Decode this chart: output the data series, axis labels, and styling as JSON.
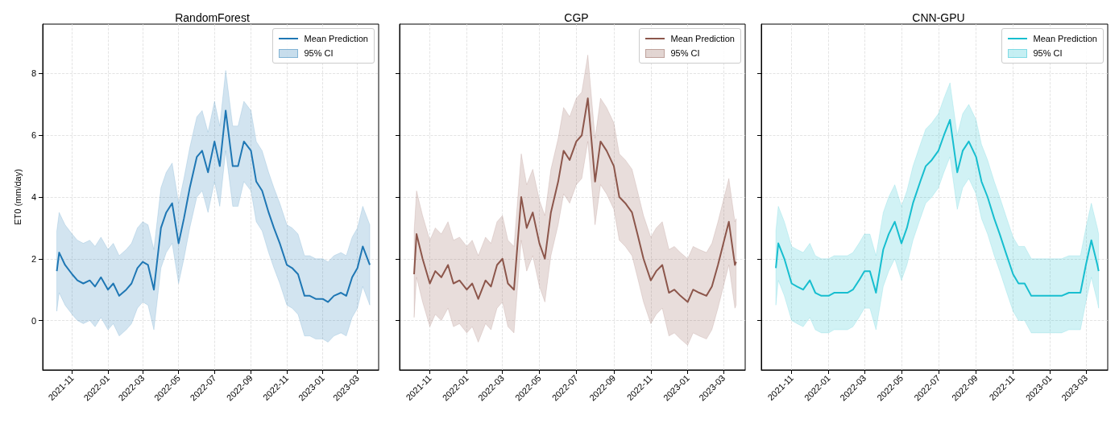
{
  "chart_data": [
    {
      "type": "line",
      "title": "RandomForest",
      "ylabel": "ET0 (mm/day)",
      "annotations": [
        "95% CI"
      ],
      "legend": "top right",
      "grid": true,
      "x": [
        "2021-10-06",
        "2021-10-10",
        "2021-10-20",
        "2021-11-01",
        "2021-11-10",
        "2021-11-20",
        "2021-12-01",
        "2021-12-10",
        "2021-12-20",
        "2022-01-01",
        "2022-01-10",
        "2022-01-20",
        "2022-02-01",
        "2022-02-10",
        "2022-02-20",
        "2022-03-01",
        "2022-03-10",
        "2022-03-20",
        "2022-04-01",
        "2022-04-10",
        "2022-04-20",
        "2022-05-01",
        "2022-05-10",
        "2022-05-20",
        "2022-06-01",
        "2022-06-10",
        "2022-06-20",
        "2022-07-01",
        "2022-07-10",
        "2022-07-20",
        "2022-08-01",
        "2022-08-10",
        "2022-08-20",
        "2022-09-01",
        "2022-09-10",
        "2022-09-20",
        "2022-10-01",
        "2022-10-10",
        "2022-10-20",
        "2022-11-01",
        "2022-11-10",
        "2022-11-20",
        "2022-12-01",
        "2022-12-10",
        "2022-12-20",
        "2023-01-01",
        "2023-01-10",
        "2023-01-20",
        "2023-02-01",
        "2023-02-10",
        "2023-02-20",
        "2023-03-01",
        "2023-03-10",
        "2023-03-20",
        "2023-03-22"
      ],
      "xlim": [
        "2021-09-12",
        "2023-04-06"
      ],
      "xticks": [
        "2021-11",
        "2022-01",
        "2022-03",
        "2022-05",
        "2022-07",
        "2022-09",
        "2022-11",
        "2023-01",
        "2023-03"
      ],
      "ylim": [
        -1.6,
        9.6
      ],
      "yticks": [
        0,
        2,
        4,
        6,
        8
      ],
      "series": [
        {
          "name": "Mean Prediction",
          "color": "#1f77b4",
          "values": [
            1.6,
            2.2,
            1.8,
            1.5,
            1.3,
            1.2,
            1.3,
            1.1,
            1.4,
            1.0,
            1.2,
            0.8,
            1.0,
            1.2,
            1.7,
            1.9,
            1.8,
            1.0,
            3.0,
            3.5,
            3.8,
            2.5,
            3.3,
            4.3,
            5.3,
            5.5,
            4.8,
            5.8,
            5.0,
            6.8,
            5.0,
            5.0,
            5.8,
            5.5,
            4.5,
            4.2,
            3.5,
            3.0,
            2.5,
            1.8,
            1.7,
            1.5,
            0.8,
            0.8,
            0.7,
            0.7,
            0.6,
            0.8,
            0.9,
            0.8,
            1.4,
            1.7,
            2.4,
            1.9,
            1.8
          ],
          "upper": [
            2.9,
            3.5,
            3.1,
            2.8,
            2.6,
            2.5,
            2.6,
            2.4,
            2.7,
            2.3,
            2.5,
            2.1,
            2.3,
            2.5,
            3.0,
            3.2,
            3.1,
            2.3,
            4.3,
            4.8,
            5.1,
            3.8,
            4.6,
            5.6,
            6.6,
            6.8,
            6.1,
            7.1,
            6.3,
            8.1,
            6.3,
            6.3,
            7.1,
            6.8,
            5.8,
            5.5,
            4.8,
            4.3,
            3.8,
            3.1,
            3.0,
            2.8,
            2.1,
            2.1,
            2.0,
            2.0,
            1.9,
            2.1,
            2.2,
            2.1,
            2.7,
            3.0,
            3.7,
            3.2,
            3.1
          ],
          "lower": [
            0.3,
            0.9,
            0.5,
            0.2,
            0.0,
            -0.1,
            0.0,
            -0.2,
            0.1,
            -0.3,
            -0.1,
            -0.5,
            -0.3,
            -0.1,
            0.4,
            0.6,
            0.5,
            -0.3,
            1.7,
            2.2,
            2.5,
            1.2,
            2.0,
            3.0,
            4.0,
            4.2,
            3.5,
            4.5,
            3.7,
            5.5,
            3.7,
            3.7,
            4.5,
            4.2,
            3.2,
            2.9,
            2.2,
            1.7,
            1.2,
            0.5,
            0.4,
            0.2,
            -0.5,
            -0.5,
            -0.6,
            -0.6,
            -0.7,
            -0.5,
            -0.4,
            -0.5,
            0.1,
            0.4,
            1.1,
            0.6,
            0.5
          ]
        }
      ]
    },
    {
      "type": "line",
      "title": "CGP",
      "annotations": [
        "95% CI"
      ],
      "legend": "top right",
      "grid": true,
      "tick_labels": "x",
      "x": [
        "2021-10-06",
        "2021-10-10",
        "2021-10-20",
        "2021-11-01",
        "2021-11-10",
        "2021-11-20",
        "2021-12-01",
        "2021-12-10",
        "2021-12-20",
        "2022-01-01",
        "2022-01-10",
        "2022-01-20",
        "2022-02-01",
        "2022-02-10",
        "2022-02-20",
        "2022-03-01",
        "2022-03-10",
        "2022-03-20",
        "2022-04-01",
        "2022-04-10",
        "2022-04-20",
        "2022-05-01",
        "2022-05-10",
        "2022-05-20",
        "2022-06-01",
        "2022-06-10",
        "2022-06-20",
        "2022-07-01",
        "2022-07-10",
        "2022-07-20",
        "2022-08-01",
        "2022-08-10",
        "2022-08-20",
        "2022-09-01",
        "2022-09-10",
        "2022-09-20",
        "2022-10-01",
        "2022-10-10",
        "2022-10-20",
        "2022-11-01",
        "2022-11-10",
        "2022-11-20",
        "2022-12-01",
        "2022-12-10",
        "2022-12-20",
        "2023-01-01",
        "2023-01-10",
        "2023-01-20",
        "2023-02-01",
        "2023-02-10",
        "2023-02-20",
        "2023-03-01",
        "2023-03-10",
        "2023-03-20",
        "2023-03-22"
      ],
      "xlim": [
        "2021-09-12",
        "2023-04-06"
      ],
      "xticks": [
        "2021-11",
        "2022-01",
        "2022-03",
        "2022-05",
        "2022-07",
        "2022-09",
        "2022-11",
        "2023-01",
        "2023-03"
      ],
      "ylim": [
        -1.6,
        9.6
      ],
      "yticks": [
        0,
        2,
        4,
        6,
        8
      ],
      "series": [
        {
          "name": "Mean Prediction",
          "color": "#8c564b",
          "values": [
            1.5,
            2.8,
            2.0,
            1.2,
            1.6,
            1.4,
            1.8,
            1.2,
            1.3,
            1.0,
            1.2,
            0.7,
            1.3,
            1.1,
            1.8,
            2.0,
            1.2,
            1.0,
            4.0,
            3.0,
            3.5,
            2.5,
            2.0,
            3.5,
            4.5,
            5.5,
            5.2,
            5.8,
            6.0,
            7.2,
            4.5,
            5.8,
            5.5,
            5.0,
            4.0,
            3.8,
            3.5,
            2.8,
            2.0,
            1.3,
            1.6,
            1.8,
            0.9,
            1.0,
            0.8,
            0.6,
            1.0,
            0.9,
            0.8,
            1.1,
            1.8,
            2.5,
            3.2,
            1.8,
            1.9
          ],
          "upper": [
            2.9,
            4.2,
            3.4,
            2.6,
            3.0,
            2.8,
            3.2,
            2.6,
            2.7,
            2.4,
            2.6,
            2.1,
            2.7,
            2.5,
            3.2,
            3.4,
            2.6,
            2.4,
            5.4,
            4.4,
            4.9,
            3.9,
            3.4,
            4.9,
            5.9,
            6.9,
            6.6,
            7.2,
            7.4,
            8.6,
            5.9,
            7.2,
            6.9,
            6.4,
            5.4,
            5.2,
            4.9,
            4.2,
            3.4,
            2.7,
            3.0,
            3.2,
            2.3,
            2.4,
            2.2,
            2.0,
            2.4,
            2.3,
            2.2,
            2.5,
            3.2,
            3.9,
            4.6,
            3.2,
            3.3
          ],
          "lower": [
            0.1,
            1.4,
            0.6,
            -0.2,
            0.2,
            0.0,
            0.4,
            -0.2,
            -0.1,
            -0.4,
            -0.2,
            -0.7,
            -0.1,
            -0.3,
            0.4,
            0.6,
            -0.2,
            -0.4,
            2.6,
            1.6,
            2.1,
            1.1,
            0.6,
            2.1,
            3.1,
            4.1,
            3.8,
            4.4,
            4.6,
            5.8,
            3.1,
            4.4,
            4.1,
            3.6,
            2.6,
            2.4,
            2.1,
            1.4,
            0.6,
            -0.1,
            0.2,
            0.4,
            -0.5,
            -0.4,
            -0.6,
            -0.8,
            -0.4,
            -0.5,
            -0.6,
            -0.3,
            0.4,
            1.1,
            1.8,
            0.4,
            0.5
          ]
        }
      ]
    },
    {
      "type": "line",
      "title": "CNN-GPU",
      "annotations": [
        "95% CI"
      ],
      "legend": "top right",
      "grid": true,
      "tick_labels": "x",
      "x": [
        "2021-10-06",
        "2021-10-10",
        "2021-10-20",
        "2021-11-01",
        "2021-11-10",
        "2021-11-20",
        "2021-12-01",
        "2021-12-10",
        "2021-12-20",
        "2022-01-01",
        "2022-01-10",
        "2022-01-20",
        "2022-02-01",
        "2022-02-10",
        "2022-02-20",
        "2022-03-01",
        "2022-03-10",
        "2022-03-20",
        "2022-04-01",
        "2022-04-10",
        "2022-04-20",
        "2022-05-01",
        "2022-05-10",
        "2022-05-20",
        "2022-06-01",
        "2022-06-10",
        "2022-06-20",
        "2022-07-01",
        "2022-07-10",
        "2022-07-20",
        "2022-08-01",
        "2022-08-10",
        "2022-08-20",
        "2022-09-01",
        "2022-09-10",
        "2022-09-20",
        "2022-10-01",
        "2022-10-10",
        "2022-10-20",
        "2022-11-01",
        "2022-11-10",
        "2022-11-20",
        "2022-12-01",
        "2022-12-10",
        "2022-12-20",
        "2023-01-01",
        "2023-01-10",
        "2023-01-20",
        "2023-02-01",
        "2023-02-10",
        "2023-02-20",
        "2023-03-01",
        "2023-03-10",
        "2023-03-20",
        "2023-03-22"
      ],
      "xlim": [
        "2021-09-12",
        "2023-04-06"
      ],
      "xticks": [
        "2021-11",
        "2022-01",
        "2022-03",
        "2022-05",
        "2022-07",
        "2022-09",
        "2022-11",
        "2023-01",
        "2023-03"
      ],
      "ylim": [
        -1.6,
        9.6
      ],
      "yticks": [
        0,
        2,
        4,
        6,
        8
      ],
      "series": [
        {
          "name": "Mean Prediction",
          "color": "#17becf",
          "values": [
            1.7,
            2.5,
            2.0,
            1.2,
            1.1,
            1.0,
            1.3,
            0.9,
            0.8,
            0.8,
            0.9,
            0.9,
            0.9,
            1.0,
            1.3,
            1.6,
            1.6,
            0.9,
            2.3,
            2.8,
            3.2,
            2.5,
            3.0,
            3.8,
            4.5,
            5.0,
            5.2,
            5.5,
            6.0,
            6.5,
            4.8,
            5.5,
            5.8,
            5.3,
            4.5,
            4.0,
            3.3,
            2.8,
            2.2,
            1.5,
            1.2,
            1.2,
            0.8,
            0.8,
            0.8,
            0.8,
            0.8,
            0.8,
            0.9,
            0.9,
            0.9,
            1.8,
            2.6,
            1.8,
            1.6
          ],
          "upper": [
            2.9,
            3.7,
            3.2,
            2.4,
            2.3,
            2.2,
            2.5,
            2.1,
            2.0,
            2.0,
            2.1,
            2.1,
            2.1,
            2.2,
            2.5,
            2.8,
            2.8,
            2.1,
            3.5,
            4.0,
            4.4,
            3.7,
            4.2,
            5.0,
            5.7,
            6.2,
            6.4,
            6.7,
            7.2,
            7.7,
            6.0,
            6.7,
            7.0,
            6.5,
            5.7,
            5.2,
            4.5,
            4.0,
            3.4,
            2.7,
            2.4,
            2.4,
            2.0,
            2.0,
            2.0,
            2.0,
            2.0,
            2.0,
            2.1,
            2.1,
            2.1,
            3.0,
            3.8,
            3.0,
            2.8
          ],
          "lower": [
            0.5,
            1.3,
            0.8,
            0.0,
            -0.1,
            -0.2,
            0.1,
            -0.3,
            -0.4,
            -0.4,
            -0.3,
            -0.3,
            -0.3,
            -0.2,
            0.1,
            0.4,
            0.4,
            -0.3,
            1.1,
            1.6,
            2.0,
            1.3,
            1.8,
            2.6,
            3.3,
            3.8,
            4.0,
            4.3,
            4.8,
            5.3,
            3.6,
            4.3,
            4.6,
            4.1,
            3.3,
            2.8,
            2.1,
            1.6,
            1.0,
            0.3,
            0.0,
            0.0,
            -0.4,
            -0.4,
            -0.4,
            -0.4,
            -0.4,
            -0.4,
            -0.3,
            -0.3,
            -0.3,
            0.6,
            1.4,
            0.6,
            0.4
          ]
        }
      ]
    }
  ]
}
